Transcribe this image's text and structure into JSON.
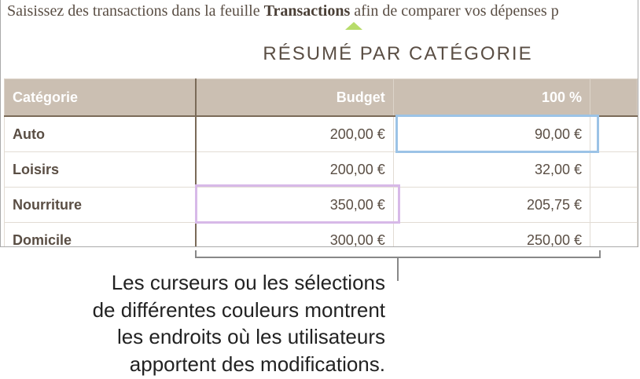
{
  "intro": {
    "before": "Saisissez des transactions dans la feuille ",
    "bold": "Transactions",
    "after": " afin de comparer vos dépenses p"
  },
  "title": "RÉSUMÉ PAR CATÉGORIE",
  "table": {
    "headers": [
      "Catégorie",
      "Budget",
      "100 %"
    ],
    "rows": [
      [
        "Auto",
        "200,00 €",
        "90,00 €"
      ],
      [
        "Loisirs",
        "200,00 €",
        "32,00 €"
      ],
      [
        "Nourriture",
        "350,00 €",
        "205,75 €"
      ],
      [
        "Domicile",
        "300,00 €",
        "250,00 €"
      ]
    ]
  },
  "colors": {
    "cursor_blue": "#9cc3e6",
    "cursor_purple": "#d7b9e8",
    "header_bg": "#cbbfb2",
    "pointer": "#b7dc6a"
  },
  "callout": [
    "Les curseurs ou les sélections",
    "de différentes couleurs montrent",
    "les endroits où les utilisateurs",
    "apportent des modifications."
  ]
}
